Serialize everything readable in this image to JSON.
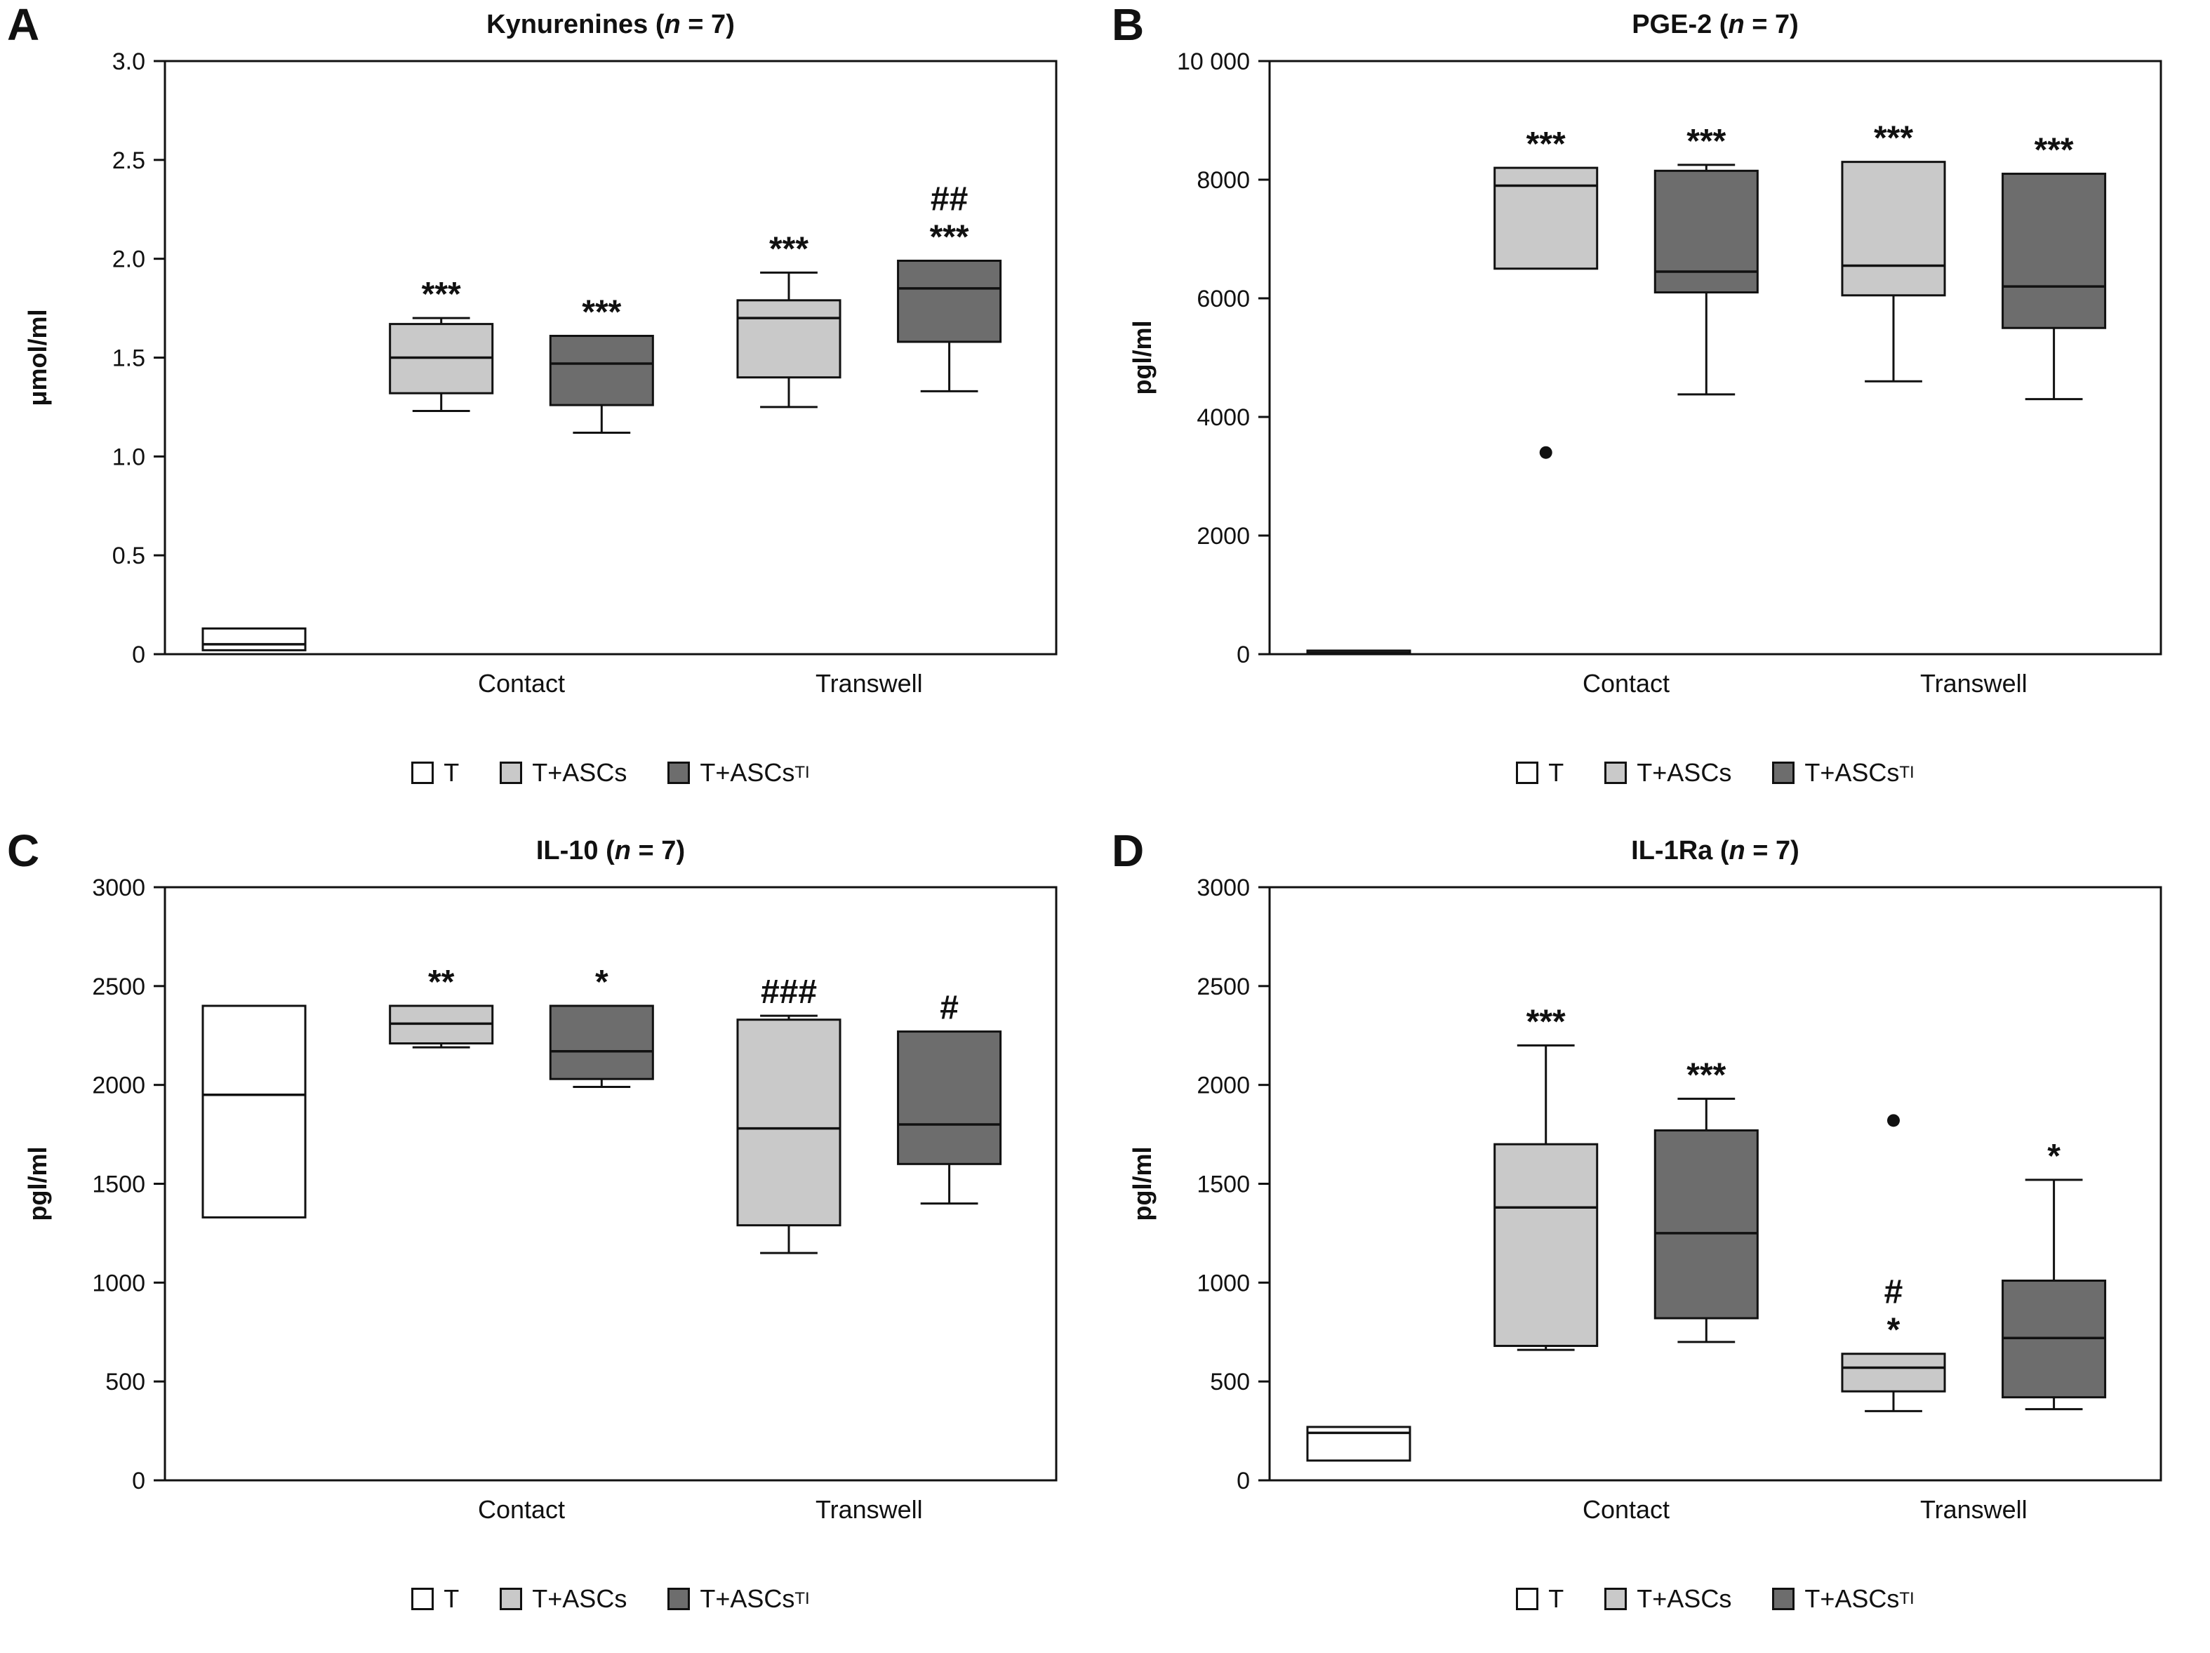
{
  "style": {
    "stroke": "#111111",
    "colors": [
      "#ffffff",
      "#c9c9c9",
      "#6d6d6d"
    ]
  },
  "legend": {
    "items": [
      {
        "label": "T",
        "color": "#ffffff"
      },
      {
        "label": "T+ASCs",
        "color": "#c9c9c9"
      },
      {
        "label": "T+ASCs",
        "sub": "TI",
        "color": "#6d6d6d"
      }
    ]
  },
  "chart_data": [
    {
      "type": "box",
      "panel": "A",
      "title_prefix": "Kynurenines (",
      "title_n": "n",
      "title_suffix": " = 7)",
      "ylabel": "μmol/ml",
      "ylim": [
        0,
        3.0
      ],
      "yticks": [
        0,
        0.5,
        1.0,
        1.5,
        2.0,
        2.5,
        3.0
      ],
      "ytick_labels": [
        "0",
        "0.5",
        "1.0",
        "1.5",
        "2.0",
        "2.5",
        "3.0"
      ],
      "xlabels": [
        {
          "label": "Contact",
          "fx": 0.4
        },
        {
          "label": "Transwell",
          "fx": 0.79
        }
      ],
      "boxes": [
        {
          "series": "T",
          "series_index": 0,
          "group": "",
          "fx": 0.1,
          "low": 0.02,
          "q1": 0.02,
          "median": 0.05,
          "q3": 0.13,
          "high": 0.13,
          "outliers": [],
          "ann": []
        },
        {
          "series": "T+ASCs",
          "series_index": 1,
          "group": "Contact",
          "fx": 0.31,
          "low": 1.23,
          "q1": 1.32,
          "median": 1.5,
          "q3": 1.67,
          "high": 1.7,
          "outliers": [],
          "ann": [
            "***"
          ]
        },
        {
          "series": "T+ASCsTI",
          "series_index": 2,
          "group": "Contact",
          "fx": 0.49,
          "low": 1.12,
          "q1": 1.26,
          "median": 1.47,
          "q3": 1.61,
          "high": 1.61,
          "outliers": [],
          "ann": [
            "***"
          ]
        },
        {
          "series": "T+ASCs",
          "series_index": 1,
          "group": "Transwell",
          "fx": 0.7,
          "low": 1.25,
          "q1": 1.4,
          "median": 1.7,
          "q3": 1.79,
          "high": 1.93,
          "outliers": [],
          "ann": [
            "***"
          ]
        },
        {
          "series": "T+ASCsTI",
          "series_index": 2,
          "group": "Transwell",
          "fx": 0.88,
          "low": 1.33,
          "q1": 1.58,
          "median": 1.85,
          "q3": 1.99,
          "high": 1.99,
          "outliers": [],
          "ann": [
            "##",
            "***"
          ]
        }
      ]
    },
    {
      "type": "box",
      "panel": "B",
      "title_prefix": "PGE-2 (",
      "title_n": "n",
      "title_suffix": " = 7)",
      "ylabel": "pgl/ml",
      "ylim": [
        0,
        10000
      ],
      "yticks": [
        0,
        2000,
        4000,
        6000,
        8000,
        10000
      ],
      "ytick_labels": [
        "0",
        "2000",
        "4000",
        "6000",
        "8000",
        "10 000"
      ],
      "xlabels": [
        {
          "label": "Contact",
          "fx": 0.4
        },
        {
          "label": "Transwell",
          "fx": 0.79
        }
      ],
      "boxes": [
        {
          "series": "T",
          "series_index": 0,
          "group": "",
          "fx": 0.1,
          "low": 0,
          "q1": 0,
          "median": 20,
          "q3": 60,
          "high": 60,
          "outliers": [],
          "ann": []
        },
        {
          "series": "T+ASCs",
          "series_index": 1,
          "group": "Contact",
          "fx": 0.31,
          "low": 6500,
          "q1": 6500,
          "median": 7900,
          "q3": 8200,
          "high": 8200,
          "outliers": [
            3400
          ],
          "ann": [
            "***"
          ]
        },
        {
          "series": "T+ASCsTI",
          "series_index": 2,
          "group": "Contact",
          "fx": 0.49,
          "low": 4380,
          "q1": 6100,
          "median": 6450,
          "q3": 8150,
          "high": 8250,
          "outliers": [],
          "ann": [
            "***"
          ]
        },
        {
          "series": "T+ASCs",
          "series_index": 1,
          "group": "Transwell",
          "fx": 0.7,
          "low": 4600,
          "q1": 6050,
          "median": 6550,
          "q3": 8300,
          "high": 8300,
          "outliers": [],
          "ann": [
            "***"
          ]
        },
        {
          "series": "T+ASCsTI",
          "series_index": 2,
          "group": "Transwell",
          "fx": 0.88,
          "low": 4300,
          "q1": 5500,
          "median": 6200,
          "q3": 8100,
          "high": 8100,
          "outliers": [],
          "ann": [
            "***"
          ]
        }
      ]
    },
    {
      "type": "box",
      "panel": "C",
      "title_prefix": "IL-10 (",
      "title_n": "n",
      "title_suffix": " = 7)",
      "ylabel": "pgl/ml",
      "ylim": [
        0,
        3000
      ],
      "yticks": [
        0,
        500,
        1000,
        1500,
        2000,
        2500,
        3000
      ],
      "ytick_labels": [
        "0",
        "500",
        "1000",
        "1500",
        "2000",
        "2500",
        "3000"
      ],
      "xlabels": [
        {
          "label": "Contact",
          "fx": 0.4
        },
        {
          "label": "Transwell",
          "fx": 0.79
        }
      ],
      "boxes": [
        {
          "series": "T",
          "series_index": 0,
          "group": "",
          "fx": 0.1,
          "low": 1330,
          "q1": 1330,
          "median": 1950,
          "q3": 2400,
          "high": 2400,
          "outliers": [],
          "ann": []
        },
        {
          "series": "T+ASCs",
          "series_index": 1,
          "group": "Contact",
          "fx": 0.31,
          "low": 2190,
          "q1": 2210,
          "median": 2310,
          "q3": 2400,
          "high": 2400,
          "outliers": [],
          "ann": [
            "**"
          ]
        },
        {
          "series": "T+ASCsTI",
          "series_index": 2,
          "group": "Contact",
          "fx": 0.49,
          "low": 1990,
          "q1": 2030,
          "median": 2170,
          "q3": 2400,
          "high": 2400,
          "outliers": [],
          "ann": [
            "*"
          ]
        },
        {
          "series": "T+ASCs",
          "series_index": 1,
          "group": "Transwell",
          "fx": 0.7,
          "low": 1150,
          "q1": 1290,
          "median": 1780,
          "q3": 2330,
          "high": 2350,
          "outliers": [],
          "ann": [
            "###"
          ]
        },
        {
          "series": "T+ASCsTI",
          "series_index": 2,
          "group": "Transwell",
          "fx": 0.88,
          "low": 1400,
          "q1": 1600,
          "median": 1800,
          "q3": 2270,
          "high": 2270,
          "outliers": [],
          "ann": [
            "#"
          ]
        }
      ]
    },
    {
      "type": "box",
      "panel": "D",
      "title_prefix": "IL-1Ra (",
      "title_n": "n",
      "title_suffix": " = 7)",
      "ylabel": "pgl/ml",
      "ylim": [
        0,
        3000
      ],
      "yticks": [
        0,
        500,
        1000,
        1500,
        2000,
        2500,
        3000
      ],
      "ytick_labels": [
        "0",
        "500",
        "1000",
        "1500",
        "2000",
        "2500",
        "3000"
      ],
      "xlabels": [
        {
          "label": "Contact",
          "fx": 0.4
        },
        {
          "label": "Transwell",
          "fx": 0.79
        }
      ],
      "boxes": [
        {
          "series": "T",
          "series_index": 0,
          "group": "",
          "fx": 0.1,
          "low": 100,
          "q1": 100,
          "median": 240,
          "q3": 270,
          "high": 270,
          "outliers": [],
          "ann": []
        },
        {
          "series": "T+ASCs",
          "series_index": 1,
          "group": "Contact",
          "fx": 0.31,
          "low": 660,
          "q1": 680,
          "median": 1380,
          "q3": 1700,
          "high": 2200,
          "outliers": [],
          "ann": [
            "***"
          ]
        },
        {
          "series": "T+ASCsTI",
          "series_index": 2,
          "group": "Contact",
          "fx": 0.49,
          "low": 700,
          "q1": 820,
          "median": 1250,
          "q3": 1770,
          "high": 1930,
          "outliers": [],
          "ann": [
            "***"
          ]
        },
        {
          "series": "T+ASCs",
          "series_index": 1,
          "group": "Transwell",
          "fx": 0.7,
          "low": 350,
          "q1": 450,
          "median": 570,
          "q3": 640,
          "high": 640,
          "outliers": [
            1820
          ],
          "ann": [
            "#",
            "*"
          ]
        },
        {
          "series": "T+ASCsTI",
          "series_index": 2,
          "group": "Transwell",
          "fx": 0.88,
          "low": 360,
          "q1": 420,
          "median": 720,
          "q3": 1010,
          "high": 1520,
          "outliers": [],
          "ann": [
            "*"
          ]
        }
      ]
    }
  ]
}
